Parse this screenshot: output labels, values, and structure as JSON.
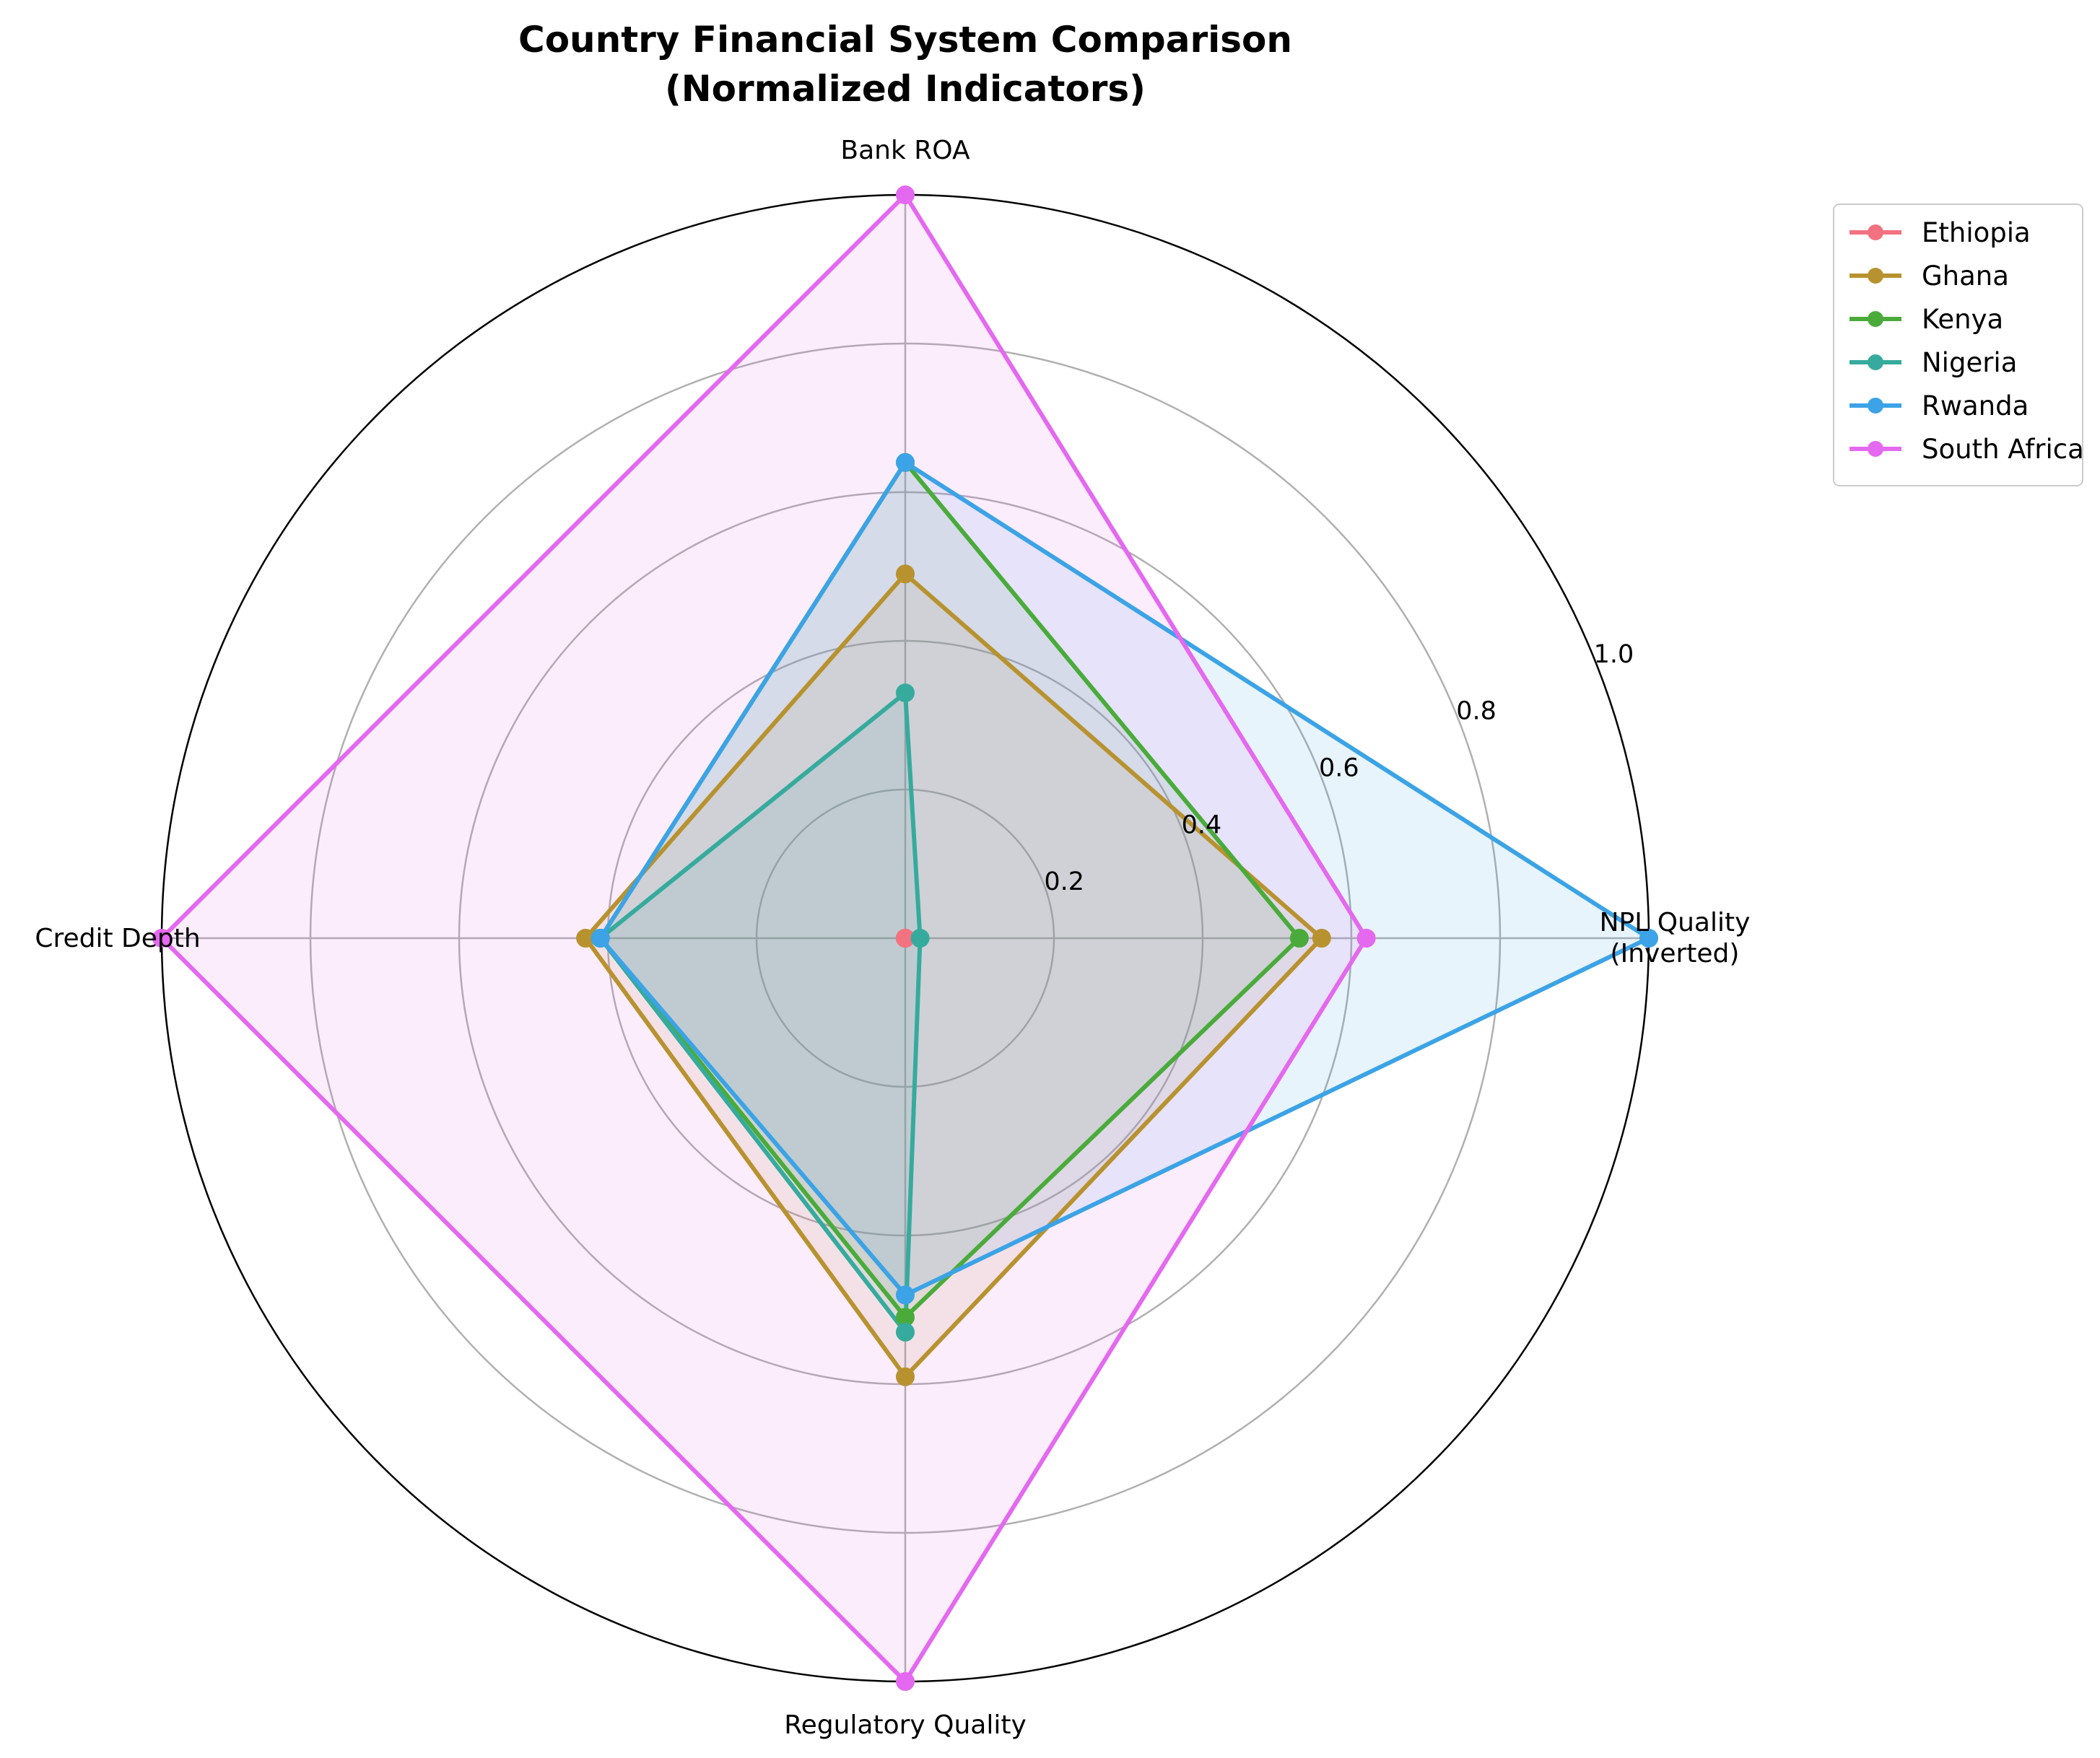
{
  "chart_data": {
    "type": "radar",
    "title": [
      "Country Financial System Comparison",
      "(Normalized Indicators)"
    ],
    "axes": [
      [
        "NPL Quality",
        "(Inverted)"
      ],
      [
        "Bank ROA"
      ],
      [
        "Credit Depth"
      ],
      [
        "Regulatory Quality"
      ]
    ],
    "rlim": [
      0,
      1
    ],
    "rticks": [
      0.2,
      0.4,
      0.6,
      0.8,
      1.0
    ],
    "rtick_labels": [
      "0.2",
      "0.4",
      "0.6",
      "0.8",
      "1.0"
    ],
    "grid": true,
    "legend_position": "outside-top-right",
    "series": [
      {
        "name": "Ethiopia",
        "color": "#f2727f",
        "values": [
          0.0,
          0.0,
          0.0,
          0.0
        ]
      },
      {
        "name": "Ghana",
        "color": "#b8922f",
        "values": [
          0.56,
          0.49,
          0.43,
          0.59
        ]
      },
      {
        "name": "Kenya",
        "color": "#4aab3b",
        "values": [
          0.53,
          0.64,
          0.41,
          0.51
        ]
      },
      {
        "name": "Nigeria",
        "color": "#36ab9d",
        "values": [
          0.02,
          0.33,
          0.41,
          0.53
        ]
      },
      {
        "name": "Rwanda",
        "color": "#3ba3e6",
        "values": [
          1.0,
          0.64,
          0.41,
          0.48
        ]
      },
      {
        "name": "South Africa",
        "color": "#e468f0",
        "values": [
          0.62,
          1.0,
          1.0,
          1.0
        ]
      }
    ]
  }
}
